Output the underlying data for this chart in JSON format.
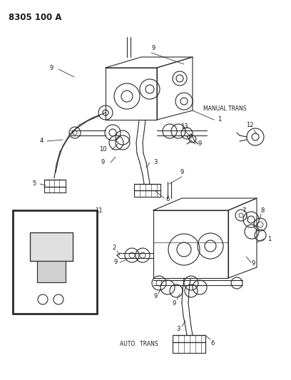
{
  "title": "8305 100 A",
  "background_color": "#ffffff",
  "line_color": "#2a2a2a",
  "text_color": "#1a1a1a",
  "manual_trans_label": "MANUAL TRANS",
  "auto_trans_label": "AUTO.  TRANS",
  "figsize": [
    4.08,
    5.33
  ],
  "dpi": 100,
  "line_width": 0.8
}
